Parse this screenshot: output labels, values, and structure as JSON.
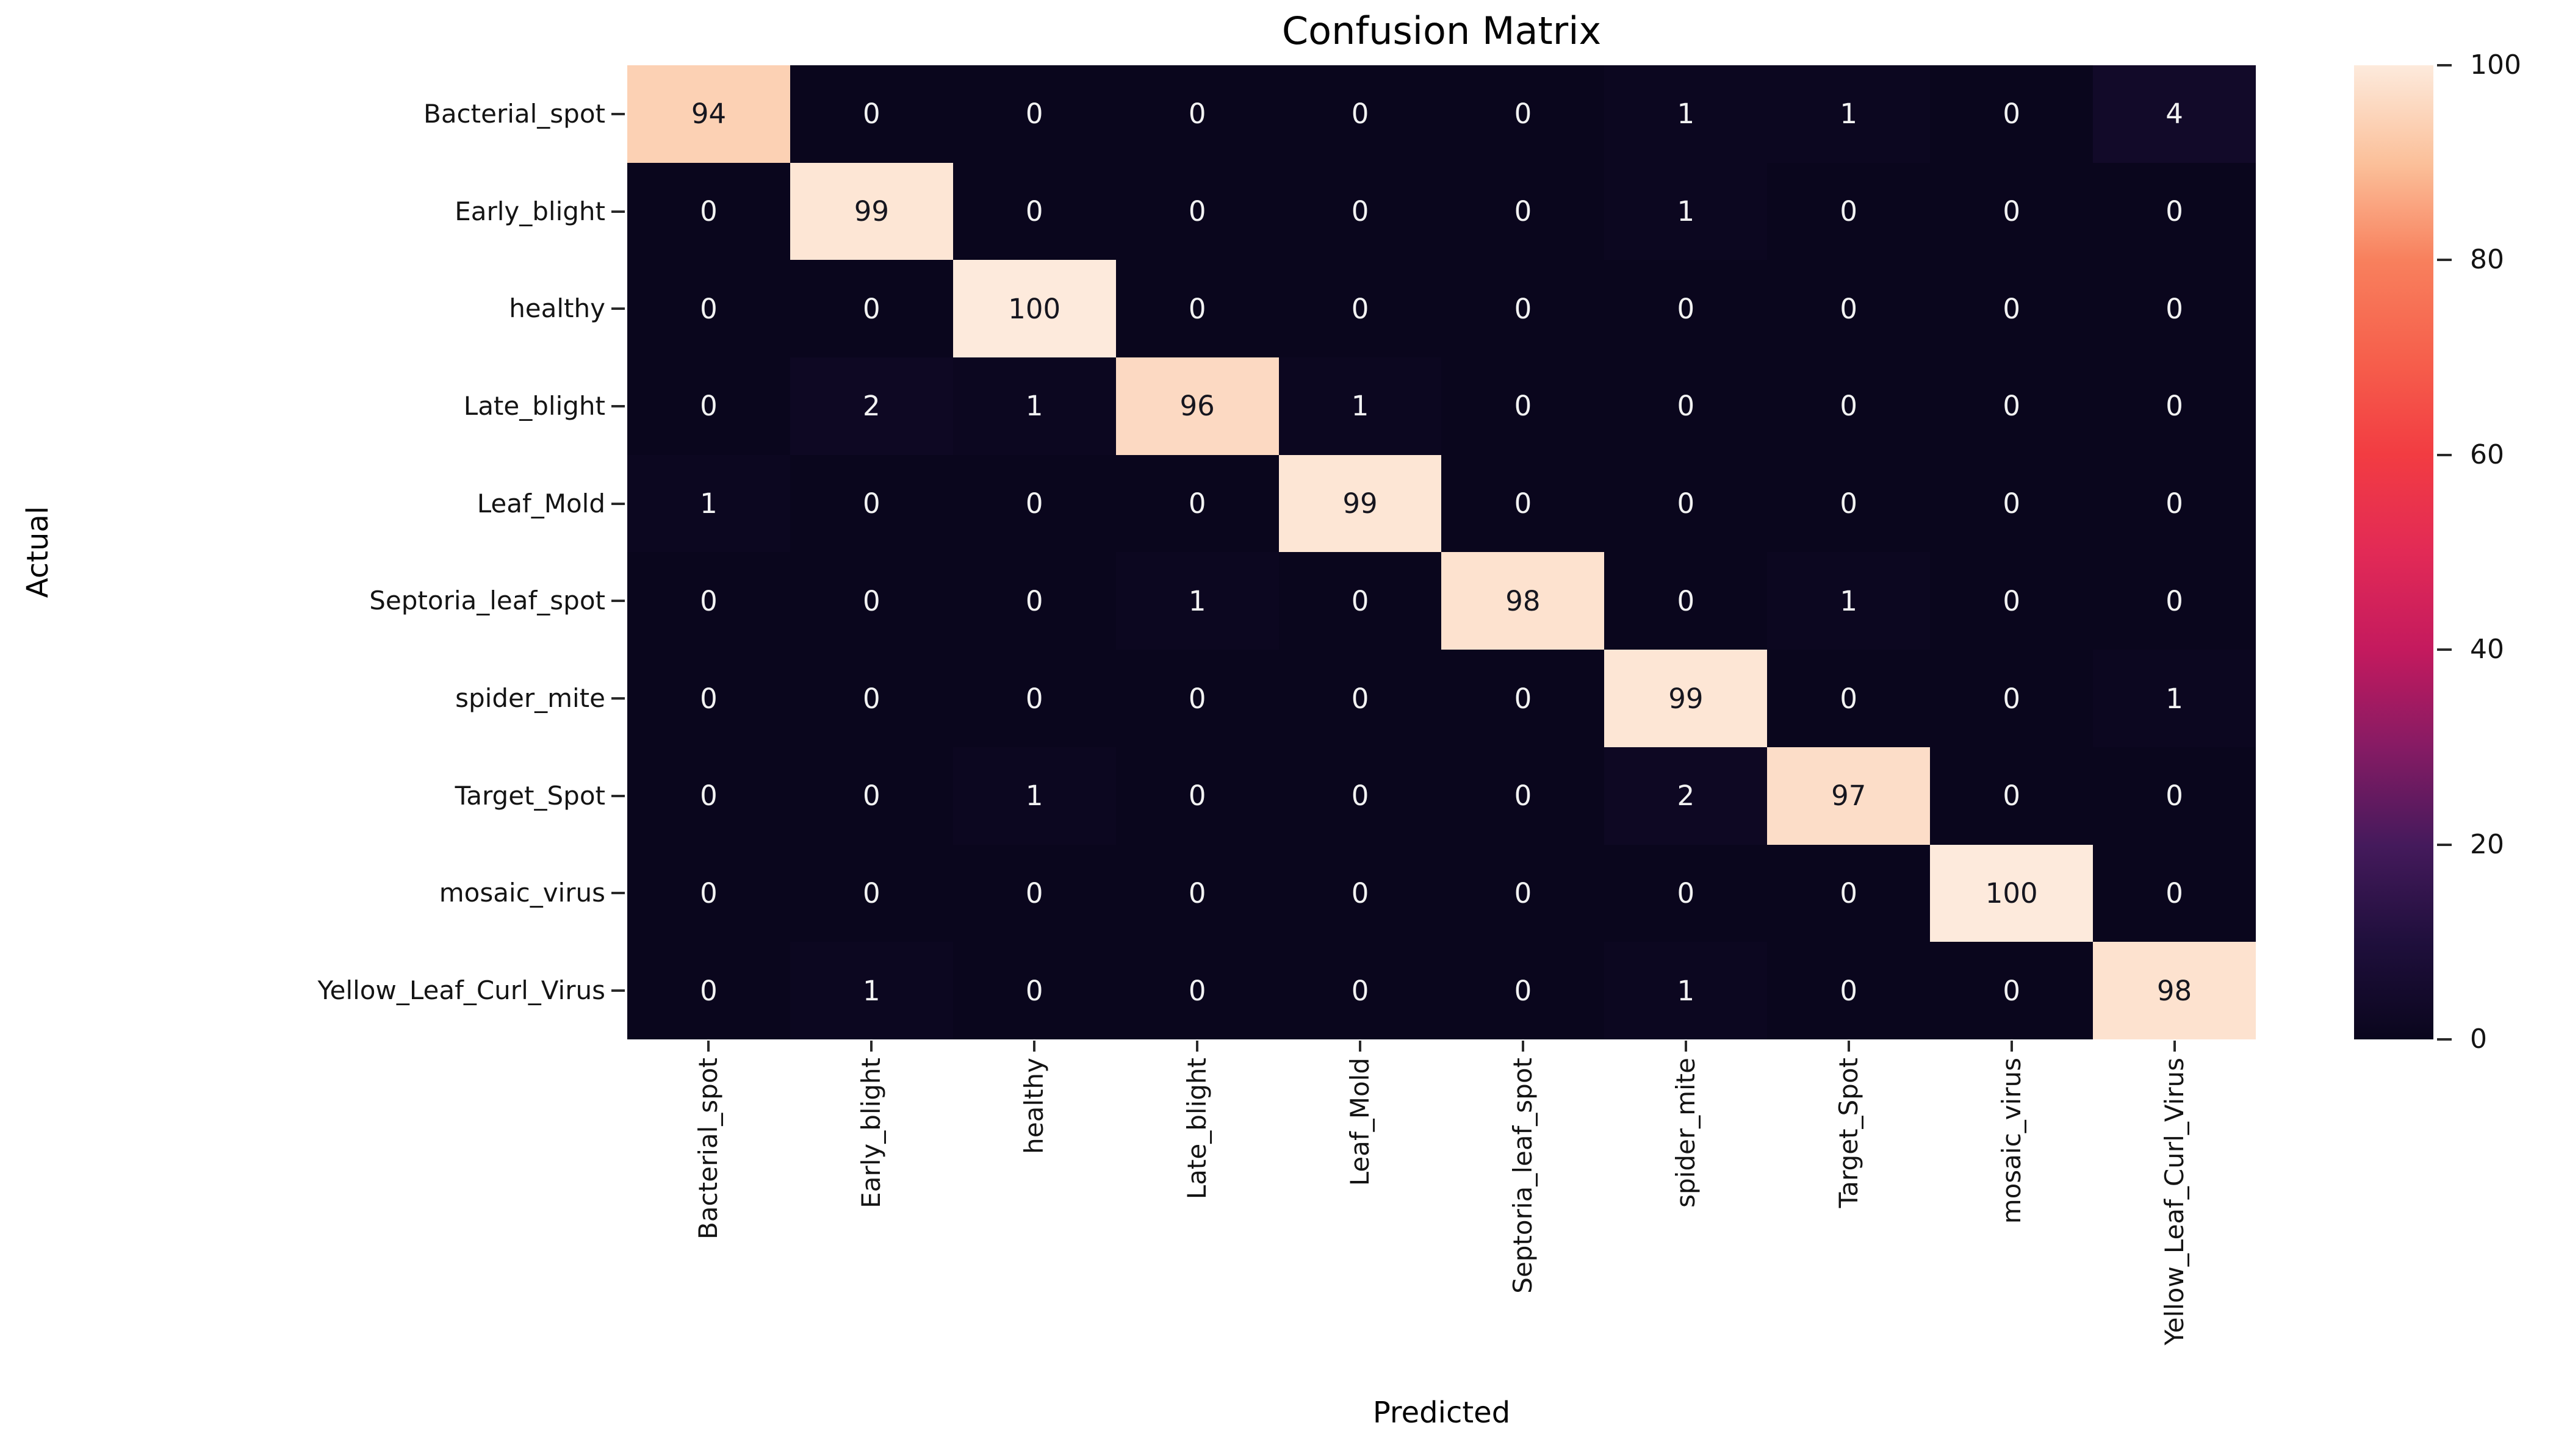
{
  "figure": {
    "title": "Confusion Matrix",
    "xlabel": "Predicted",
    "ylabel": "Actual",
    "background": "#ffffff"
  },
  "chart_data": {
    "type": "heatmap",
    "title": "Confusion Matrix",
    "xlabel": "Predicted",
    "ylabel": "Actual",
    "x_categories": [
      "Bacterial_spot",
      "Early_blight",
      "healthy",
      "Late_blight",
      "Leaf_Mold",
      "Septoria_leaf_spot",
      "spider_mite",
      "Target_Spot",
      "mosaic_virus",
      "Yellow_Leaf_Curl_Virus"
    ],
    "y_categories": [
      "Bacterial_spot",
      "Early_blight",
      "healthy",
      "Late_blight",
      "Leaf_Mold",
      "Septoria_leaf_spot",
      "spider_mite",
      "Target_Spot",
      "mosaic_virus",
      "Yellow_Leaf_Curl_Virus"
    ],
    "matrix": [
      [
        94,
        0,
        0,
        0,
        0,
        0,
        1,
        1,
        0,
        4
      ],
      [
        0,
        99,
        0,
        0,
        0,
        0,
        1,
        0,
        0,
        0
      ],
      [
        0,
        0,
        100,
        0,
        0,
        0,
        0,
        0,
        0,
        0
      ],
      [
        0,
        2,
        1,
        96,
        1,
        0,
        0,
        0,
        0,
        0
      ],
      [
        1,
        0,
        0,
        0,
        99,
        0,
        0,
        0,
        0,
        0
      ],
      [
        0,
        0,
        0,
        1,
        0,
        98,
        0,
        1,
        0,
        0
      ],
      [
        0,
        0,
        0,
        0,
        0,
        0,
        99,
        0,
        0,
        1
      ],
      [
        0,
        0,
        1,
        0,
        0,
        0,
        2,
        97,
        0,
        0
      ],
      [
        0,
        0,
        0,
        0,
        0,
        0,
        0,
        0,
        100,
        0
      ],
      [
        0,
        1,
        0,
        0,
        0,
        0,
        1,
        0,
        0,
        98
      ]
    ],
    "value_range": [
      0,
      100
    ],
    "grid": false,
    "legend_position": "right-colorbar",
    "colormap": "rocket",
    "colorbar_ticks": [
      0,
      20,
      40,
      60,
      80,
      100
    ],
    "colormap_stops": [
      {
        "value": 0,
        "color": "#0a061d"
      },
      {
        "value": 10,
        "color": "#1f0f3c"
      },
      {
        "value": 20,
        "color": "#451a5c"
      },
      {
        "value": 30,
        "color": "#861b64"
      },
      {
        "value": 40,
        "color": "#c41a5e"
      },
      {
        "value": 50,
        "color": "#e22a56"
      },
      {
        "value": 60,
        "color": "#f23c42"
      },
      {
        "value": 70,
        "color": "#f6604c"
      },
      {
        "value": 80,
        "color": "#f8805d"
      },
      {
        "value": 90,
        "color": "#fbc09a"
      },
      {
        "value": 100,
        "color": "#fdeadc"
      }
    ],
    "annotation_colors": {
      "on_dark": "#f2f2f2",
      "on_light": "#16161f",
      "threshold": 50
    }
  }
}
